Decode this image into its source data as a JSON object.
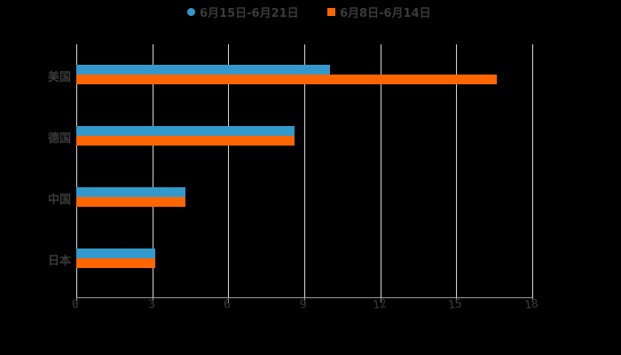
{
  "colors": {
    "series1": "#3399cc",
    "series2": "#ff6600"
  },
  "legend": [
    {
      "label": "6月15日-6月21日",
      "marker": "circle"
    },
    {
      "label": "6月8日-6月14日",
      "marker": "square"
    }
  ],
  "chart_data": {
    "type": "bar",
    "orientation": "horizontal",
    "title": "",
    "xlabel": "",
    "ylabel": "",
    "categories": [
      "美国",
      "德国",
      "中国",
      "日本"
    ],
    "series": [
      {
        "name": "6月15日-6月21日",
        "color": "#3399cc",
        "values": [
          10.0,
          8.6,
          4.3,
          3.1
        ]
      },
      {
        "name": "6月8日-6月14日",
        "color": "#ff6600",
        "values": [
          16.6,
          8.6,
          4.3,
          3.1
        ]
      }
    ],
    "xlim": [
      0,
      18
    ],
    "xticks": [
      "0",
      "3",
      "6",
      "9",
      "12",
      "15",
      "18"
    ],
    "grid": true,
    "legend_position": "top"
  }
}
